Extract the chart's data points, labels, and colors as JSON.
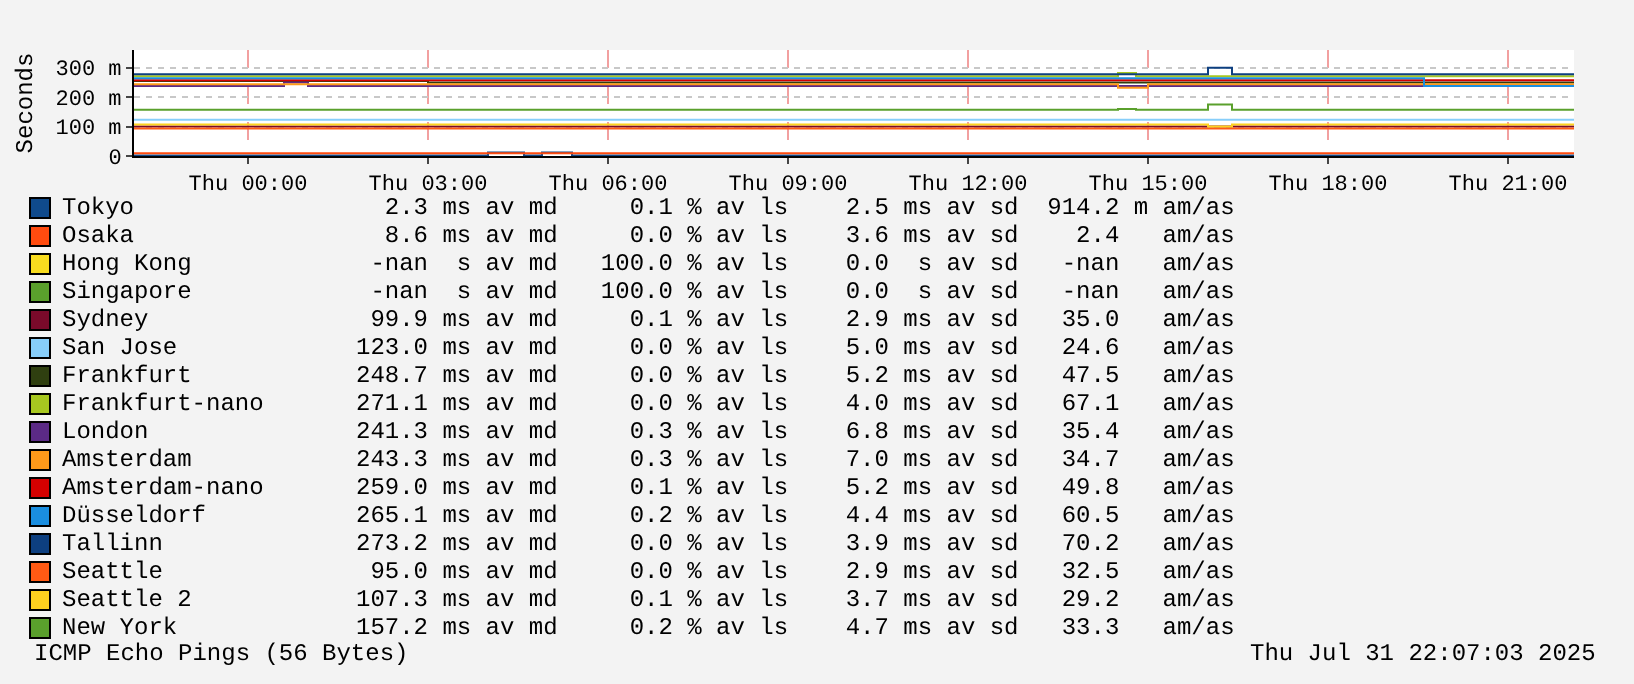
{
  "chart_data": {
    "type": "step",
    "ylabel": "Seconds",
    "xlim": [
      "2025-07-30T22:06",
      "2025-07-31T22:06"
    ],
    "xticks": [
      {
        "value": "2025-07-31T00:00",
        "label": "Thu 00:00"
      },
      {
        "value": "2025-07-31T03:00",
        "label": "Thu 03:00"
      },
      {
        "value": "2025-07-31T06:00",
        "label": "Thu 06:00"
      },
      {
        "value": "2025-07-31T09:00",
        "label": "Thu 09:00"
      },
      {
        "value": "2025-07-31T12:00",
        "label": "Thu 12:00"
      },
      {
        "value": "2025-07-31T15:00",
        "label": "Thu 15:00"
      },
      {
        "value": "2025-07-31T18:00",
        "label": "Thu 18:00"
      },
      {
        "value": "2025-07-31T21:00",
        "label": "Thu 21:00"
      }
    ],
    "ylim": [
      0,
      360
    ],
    "yticks": [
      0,
      {
        "value": 100,
        "label": "100 m"
      },
      {
        "value": 200,
        "label": "200 m"
      },
      {
        "value": 300,
        "label": "300 m"
      }
    ],
    "grid": true,
    "legend": "bottom",
    "series": [
      {
        "name": "Tokyo",
        "color": "#0f4a8c",
        "x": [
          "2025-07-30T22:06",
          "2025-07-31T04:00",
          "2025-07-31T04:36",
          "2025-07-31T04:54",
          "2025-07-31T05:24",
          "2025-07-31T22:06"
        ],
        "values": [
          2,
          12,
          2,
          12,
          2,
          2
        ]
      },
      {
        "name": "Osaka",
        "color": "#ff4b0f",
        "x": [
          "2025-07-30T22:06",
          "2025-07-31T22:06"
        ],
        "values": [
          9,
          9
        ]
      },
      {
        "name": "Hong Kong",
        "color": "#f8dc1f"
      },
      {
        "name": "Singapore",
        "color": "#5aa02c"
      },
      {
        "name": "Sydney",
        "color": "#7a0a2a",
        "x": [
          "2025-07-30T22:06",
          "2025-07-31T22:06"
        ],
        "values": [
          100,
          100
        ]
      },
      {
        "name": "San Jose",
        "color": "#87cefa",
        "x": [
          "2025-07-30T22:06",
          "2025-07-31T22:06"
        ],
        "values": [
          123,
          123
        ]
      },
      {
        "name": "Frankfurt",
        "color": "#2f3f10",
        "x": [
          "2025-07-30T22:06",
          "2025-07-31T03:00",
          "2025-07-31T22:06"
        ],
        "values": [
          255,
          250,
          250
        ]
      },
      {
        "name": "Frankfurt-nano",
        "color": "#a7c720",
        "x": [
          "2025-07-30T22:06",
          "2025-07-31T14:30",
          "2025-07-31T14:48",
          "2025-07-31T22:06"
        ],
        "values": [
          271,
          282,
          271,
          271
        ]
      },
      {
        "name": "London",
        "color": "#5b2a86",
        "x": [
          "2025-07-30T22:06",
          "2025-07-31T00:36",
          "2025-07-31T01:00",
          "2025-07-31T22:06"
        ],
        "values": [
          238,
          250,
          238,
          238
        ]
      },
      {
        "name": "Amsterdam",
        "color": "#ff9a1a",
        "x": [
          "2025-07-30T22:06",
          "2025-07-31T14:30",
          "2025-07-31T15:00",
          "2025-07-31T22:06"
        ],
        "values": [
          244,
          232,
          244,
          244
        ]
      },
      {
        "name": "Amsterdam-nano",
        "color": "#d40000",
        "x": [
          "2025-07-30T22:06",
          "2025-07-31T22:06"
        ],
        "values": [
          257,
          257
        ]
      },
      {
        "name": "Düsseldorf",
        "color": "#1a8ee0",
        "x": [
          "2025-07-30T22:06",
          "2025-07-31T19:36",
          "2025-07-31T22:06"
        ],
        "values": [
          264,
          238,
          238
        ]
      },
      {
        "name": "Tallinn",
        "color": "#0d3f80",
        "x": [
          "2025-07-30T22:06",
          "2025-07-31T16:00",
          "2025-07-31T16:24",
          "2025-07-31T22:06"
        ],
        "values": [
          278,
          300,
          278,
          278
        ]
      },
      {
        "name": "Seattle",
        "color": "#ff5a14",
        "x": [
          "2025-07-30T22:06",
          "2025-07-31T22:06"
        ],
        "values": [
          93,
          93
        ]
      },
      {
        "name": "Seattle 2",
        "color": "#ffd21f",
        "x": [
          "2025-07-30T22:06",
          "2025-07-31T16:00",
          "2025-07-31T16:24",
          "2025-07-31T22:06"
        ],
        "values": [
          107,
          100,
          107,
          107
        ]
      },
      {
        "name": "New York",
        "color": "#5aa02c",
        "x": [
          "2025-07-30T22:06",
          "2025-07-31T14:30",
          "2025-07-31T14:48",
          "2025-07-31T16:00",
          "2025-07-31T16:24",
          "2025-07-31T22:06"
        ],
        "values": [
          157,
          160,
          157,
          175,
          157,
          157
        ]
      }
    ],
    "annotations": [
      "  2.3 ms av md     0.1 % av ls    2.5 ms av sd  914.2 m am/as",
      "  8.6 ms av md     0.0 % av ls    3.6 ms av sd    2.4   am/as",
      " -nan  s av md   100.0 % av ls    0.0  s av sd   -nan   am/as",
      " -nan  s av md   100.0 % av ls    0.0  s av sd   -nan   am/as",
      " 99.9 ms av md     0.1 % av ls    2.9 ms av sd   35.0   am/as",
      "123.0 ms av md     0.0 % av ls    5.0 ms av sd   24.6   am/as",
      "248.7 ms av md     0.0 % av ls    5.2 ms av sd   47.5   am/as",
      "271.1 ms av md     0.0 % av ls    4.0 ms av sd   67.1   am/as",
      "241.3 ms av md     0.3 % av ls    6.8 ms av sd   35.4   am/as",
      "243.3 ms av md     0.3 % av ls    7.0 ms av sd   34.7   am/as",
      "259.0 ms av md     0.1 % av ls    5.2 ms av sd   49.8   am/as",
      "265.1 ms av md     0.2 % av ls    4.4 ms av sd   60.5   am/as",
      "273.2 ms av md     0.0 % av ls    3.9 ms av sd   70.2   am/as",
      " 95.0 ms av md     0.0 % av ls    2.9 ms av sd   32.5   am/as",
      "107.3 ms av md     0.1 % av ls    3.7 ms av sd   29.2   am/as",
      "157.2 ms av md     0.2 % av ls    4.7 ms av sd   33.3   am/as",
      "ICMP Echo Pings (56 Bytes)",
      "Thu Jul 31 22:07:03 2025"
    ]
  }
}
